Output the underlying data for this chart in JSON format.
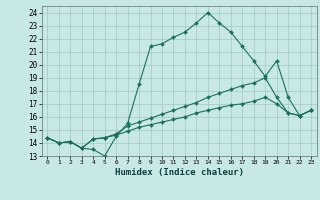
{
  "xlabel": "Humidex (Indice chaleur)",
  "bg_color": "#c8e8e5",
  "grid_color": "#a0c8c5",
  "line_color": "#1a7060",
  "xlim": [
    -0.5,
    23.5
  ],
  "ylim": [
    13,
    24.5
  ],
  "yticks": [
    13,
    14,
    15,
    16,
    17,
    18,
    19,
    20,
    21,
    22,
    23,
    24
  ],
  "xticks": [
    0,
    1,
    2,
    3,
    4,
    5,
    6,
    7,
    8,
    9,
    10,
    11,
    12,
    13,
    14,
    15,
    16,
    17,
    18,
    19,
    20,
    21,
    22,
    23
  ],
  "line1_x": [
    0,
    1,
    2,
    3,
    4,
    5,
    6,
    7,
    8,
    9,
    10,
    11,
    12,
    13,
    14,
    15,
    16,
    17,
    18,
    19,
    20,
    21,
    22,
    23
  ],
  "line1_y": [
    14.4,
    14.0,
    14.1,
    13.6,
    13.5,
    13.0,
    14.5,
    15.5,
    18.5,
    21.4,
    21.6,
    22.1,
    22.5,
    23.2,
    24.0,
    23.2,
    22.5,
    21.4,
    20.3,
    19.1,
    20.3,
    17.5,
    16.1,
    16.5
  ],
  "line2_x": [
    0,
    1,
    2,
    3,
    4,
    5,
    6,
    7,
    8,
    9,
    10,
    11,
    12,
    13,
    14,
    15,
    16,
    17,
    18,
    19,
    20,
    21,
    22,
    23
  ],
  "line2_y": [
    14.4,
    14.0,
    14.1,
    13.6,
    14.3,
    14.4,
    14.7,
    15.3,
    15.6,
    15.9,
    16.2,
    16.5,
    16.8,
    17.1,
    17.5,
    17.8,
    18.1,
    18.4,
    18.6,
    19.0,
    17.5,
    16.3,
    16.1,
    16.5
  ],
  "line3_x": [
    0,
    1,
    2,
    3,
    4,
    5,
    6,
    7,
    8,
    9,
    10,
    11,
    12,
    13,
    14,
    15,
    16,
    17,
    18,
    19,
    20,
    21,
    22,
    23
  ],
  "line3_y": [
    14.4,
    14.0,
    14.1,
    13.6,
    14.3,
    14.4,
    14.6,
    14.9,
    15.2,
    15.4,
    15.6,
    15.8,
    16.0,
    16.3,
    16.5,
    16.7,
    16.9,
    17.0,
    17.2,
    17.5,
    17.0,
    16.3,
    16.1,
    16.5
  ]
}
